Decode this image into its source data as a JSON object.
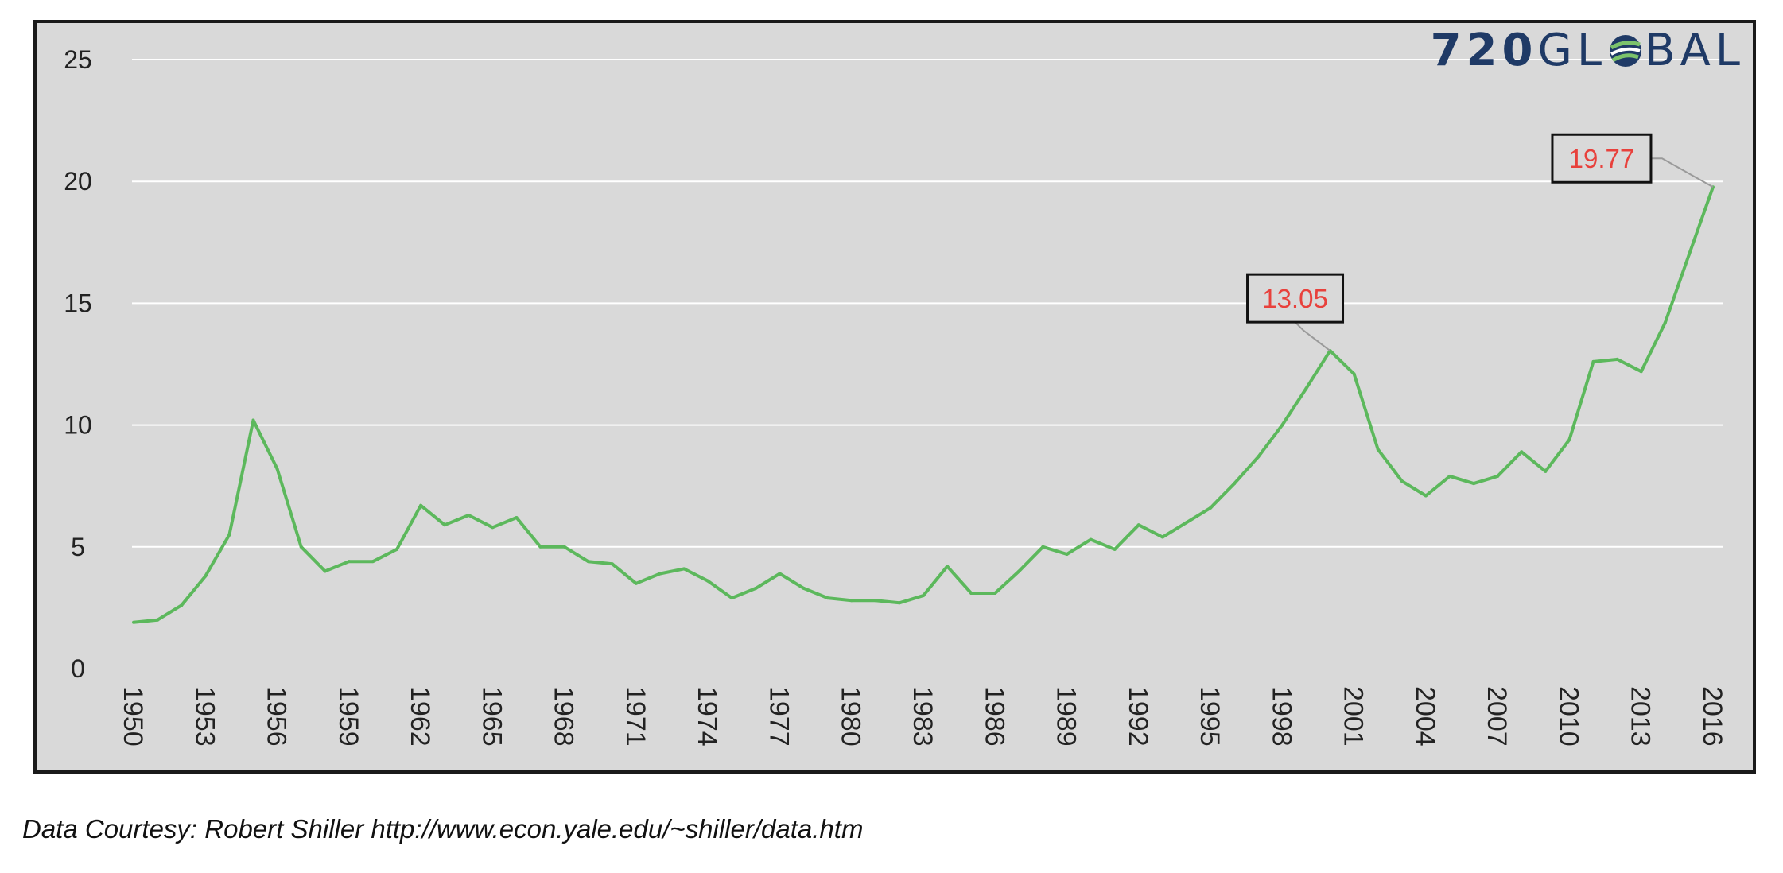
{
  "logo": {
    "prefix": "720",
    "middle": "GL",
    "suffix": "BAL",
    "icon": "globe-icon"
  },
  "caption": "Data Courtesy: Robert Shiller http://www.econ.yale.edu/~shiller/data.htm",
  "colors": {
    "line": "#5cb85c",
    "callout_text": "#e8413c",
    "background": "#d9d9d9",
    "grid": "#ffffff"
  },
  "chart_data": {
    "type": "line",
    "title": "",
    "xlabel": "",
    "ylabel": "",
    "ylim": [
      0,
      25
    ],
    "yticks": [
      0,
      5,
      10,
      15,
      20,
      25
    ],
    "xticks": [
      1950,
      1953,
      1956,
      1959,
      1962,
      1965,
      1968,
      1971,
      1974,
      1977,
      1980,
      1983,
      1986,
      1989,
      1992,
      1995,
      1998,
      2001,
      2004,
      2007,
      2010,
      2013,
      2016
    ],
    "grid": true,
    "x": [
      1950,
      1951,
      1952,
      1953,
      1954,
      1955,
      1956,
      1957,
      1958,
      1959,
      1960,
      1961,
      1962,
      1963,
      1964,
      1965,
      1966,
      1967,
      1968,
      1969,
      1970,
      1971,
      1972,
      1973,
      1974,
      1975,
      1976,
      1977,
      1978,
      1979,
      1980,
      1981,
      1982,
      1983,
      1984,
      1985,
      1986,
      1987,
      1988,
      1989,
      1990,
      1991,
      1992,
      1993,
      1994,
      1995,
      1996,
      1997,
      1998,
      1999,
      2000,
      2001,
      2002,
      2003,
      2004,
      2005,
      2006,
      2007,
      2008,
      2009,
      2010,
      2011,
      2012,
      2013,
      2014,
      2015,
      2016
    ],
    "series": [
      {
        "values": [
          1.9,
          2.0,
          2.6,
          3.8,
          5.5,
          10.2,
          8.2,
          5.0,
          4.0,
          4.4,
          4.4,
          4.9,
          6.7,
          5.9,
          6.3,
          5.8,
          6.2,
          5.0,
          5.0,
          4.4,
          4.3,
          3.5,
          3.9,
          4.1,
          3.6,
          2.9,
          3.3,
          3.9,
          3.3,
          2.9,
          2.8,
          2.8,
          2.7,
          3.0,
          4.2,
          3.1,
          3.1,
          4.0,
          5.0,
          4.7,
          5.3,
          4.9,
          5.9,
          5.4,
          6.0,
          6.6,
          7.6,
          8.7,
          10.0,
          11.5,
          13.05,
          12.1,
          9.0,
          7.7,
          7.1,
          7.9,
          7.6,
          7.9,
          8.9,
          8.1,
          9.4,
          12.6,
          12.7,
          12.2,
          14.2,
          17.0,
          19.77
        ]
      }
    ],
    "annotations": [
      {
        "text": "13.05",
        "x": 2000,
        "y": 13.05
      },
      {
        "text": "19.77",
        "x": 2016,
        "y": 19.77
      }
    ]
  }
}
